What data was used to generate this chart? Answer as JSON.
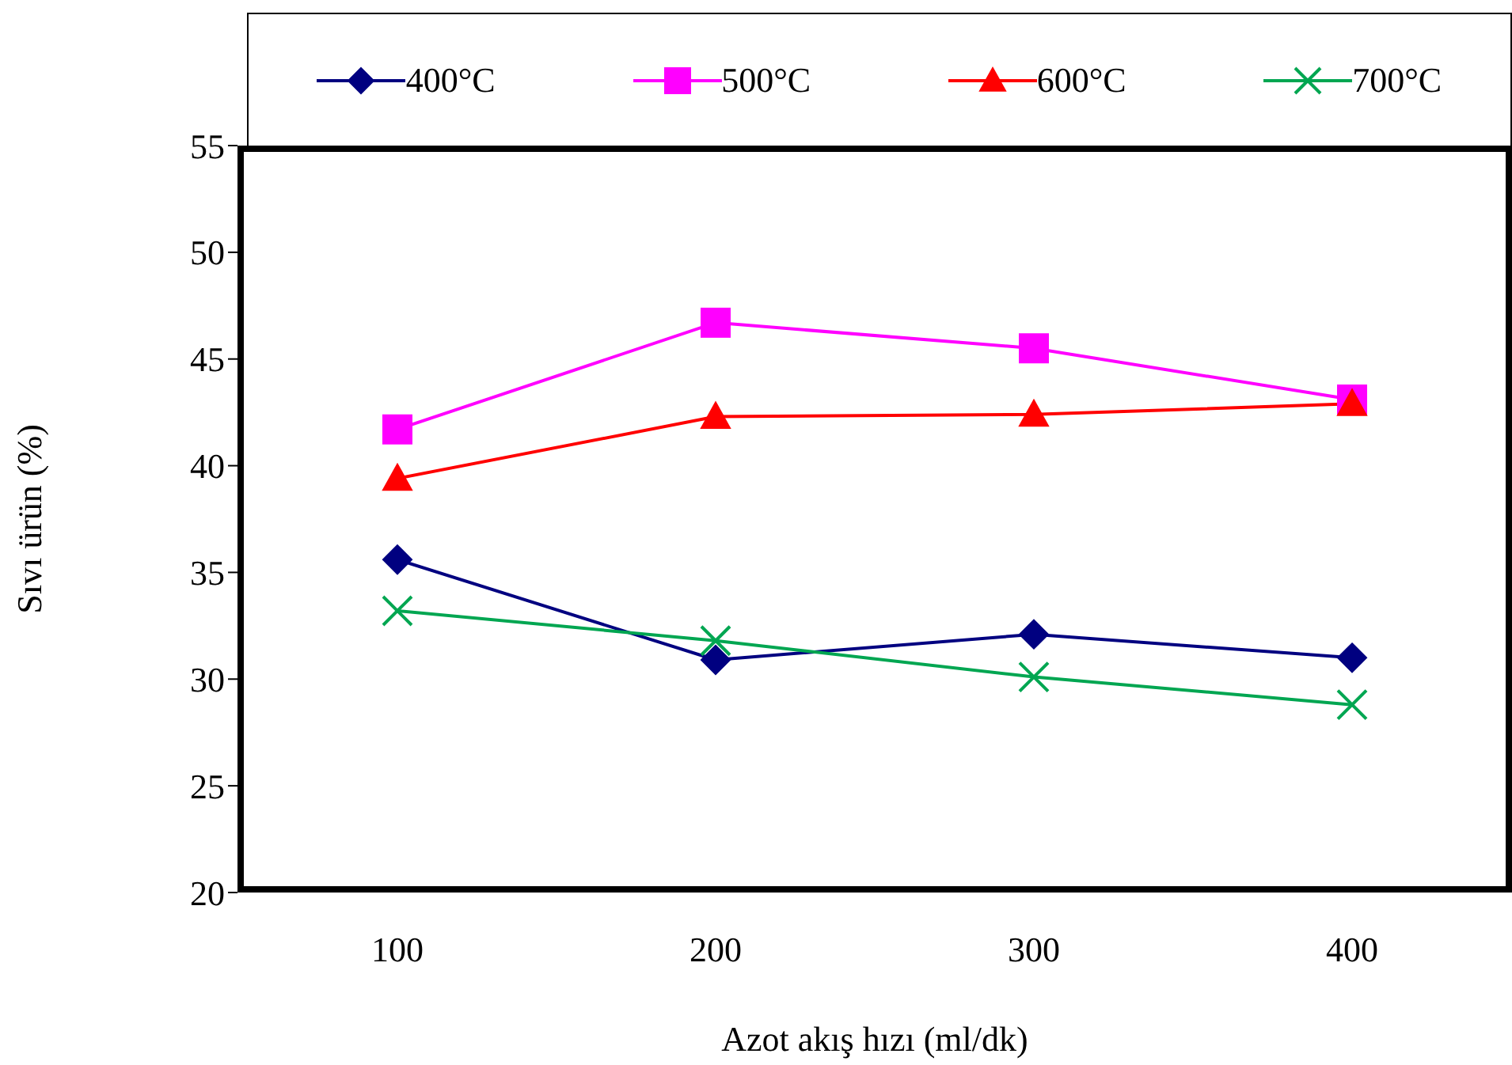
{
  "chart_data": {
    "type": "line",
    "xlabel": "Azot akış hızı (ml/dk)",
    "ylabel": "Sıvı ürün (%)",
    "categories": [
      "100",
      "200",
      "300",
      "400"
    ],
    "series": [
      {
        "name": "400°C",
        "color": "#000080",
        "marker": "diamond",
        "values": [
          35.6,
          30.9,
          32.1,
          31.0
        ]
      },
      {
        "name": "500°C",
        "color": "#ff00ff",
        "marker": "square",
        "values": [
          41.7,
          46.7,
          45.5,
          43.1
        ]
      },
      {
        "name": "600°C",
        "color": "#ff0000",
        "marker": "triangle",
        "values": [
          39.4,
          42.3,
          42.4,
          42.9
        ]
      },
      {
        "name": "700°C",
        "color": "#00a651",
        "marker": "cross",
        "values": [
          33.2,
          31.8,
          30.1,
          28.8
        ]
      }
    ],
    "ylim": [
      20,
      55
    ],
    "yticks": [
      20,
      25,
      30,
      35,
      40,
      45,
      50,
      55
    ],
    "grid": false,
    "legend": "top"
  }
}
